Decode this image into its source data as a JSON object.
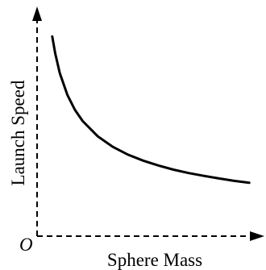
{
  "chart_data": {
    "type": "line",
    "xlabel": "Sphere Mass",
    "ylabel": "Launch Speed",
    "origin_label": "O",
    "series": [
      {
        "x": [
          1,
          1.2,
          1.5,
          2,
          2.5,
          3,
          4,
          5,
          6,
          7,
          8,
          9,
          10,
          11,
          12,
          13,
          14
        ],
        "y": [
          10,
          9.13,
          8.16,
          7.07,
          6.32,
          5.77,
          5.0,
          4.47,
          4.08,
          3.78,
          3.54,
          3.33,
          3.16,
          3.02,
          2.89,
          2.77,
          2.67
        ]
      }
    ],
    "xlim": [
      0,
      15
    ],
    "ylim": [
      0,
      11.5
    ],
    "grid": false,
    "line_color": "#000000"
  }
}
